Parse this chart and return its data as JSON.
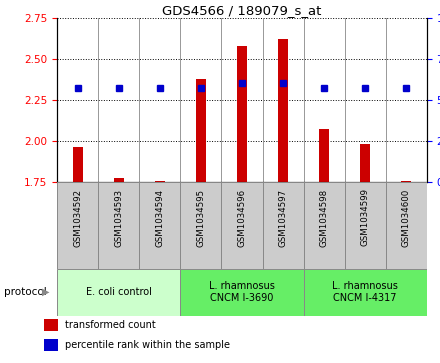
{
  "title": "GDS4566 / 189079_s_at",
  "samples": [
    "GSM1034592",
    "GSM1034593",
    "GSM1034594",
    "GSM1034595",
    "GSM1034596",
    "GSM1034597",
    "GSM1034598",
    "GSM1034599",
    "GSM1034600"
  ],
  "transformed_count": [
    1.96,
    1.77,
    1.755,
    2.38,
    2.58,
    2.62,
    2.07,
    1.98,
    1.755
  ],
  "percentile_rank": [
    57,
    57,
    57,
    57,
    60,
    60,
    57,
    57,
    57
  ],
  "ylim_left": [
    1.75,
    2.75
  ],
  "ylim_right": [
    0,
    100
  ],
  "yticks_left": [
    1.75,
    2.0,
    2.25,
    2.5,
    2.75
  ],
  "yticks_right": [
    0,
    25,
    50,
    75,
    100
  ],
  "bar_color": "#cc0000",
  "dot_color": "#0000cc",
  "groups": [
    {
      "label": "E. coli control",
      "start": 0,
      "end": 3,
      "color": "#ccffcc"
    },
    {
      "label": "L. rhamnosus\nCNCM I-3690",
      "start": 3,
      "end": 6,
      "color": "#66ee66"
    },
    {
      "label": "L. rhamnosus\nCNCM I-4317",
      "start": 6,
      "end": 9,
      "color": "#66ee66"
    }
  ],
  "legend_items": [
    {
      "label": "transformed count",
      "color": "#cc0000"
    },
    {
      "label": "percentile rank within the sample",
      "color": "#0000cc"
    }
  ],
  "base_value": 1.75,
  "protocol_label": "protocol",
  "sample_box_color": "#cccccc",
  "plot_bg": "#ffffff",
  "figsize": [
    4.4,
    3.63
  ],
  "dpi": 100
}
